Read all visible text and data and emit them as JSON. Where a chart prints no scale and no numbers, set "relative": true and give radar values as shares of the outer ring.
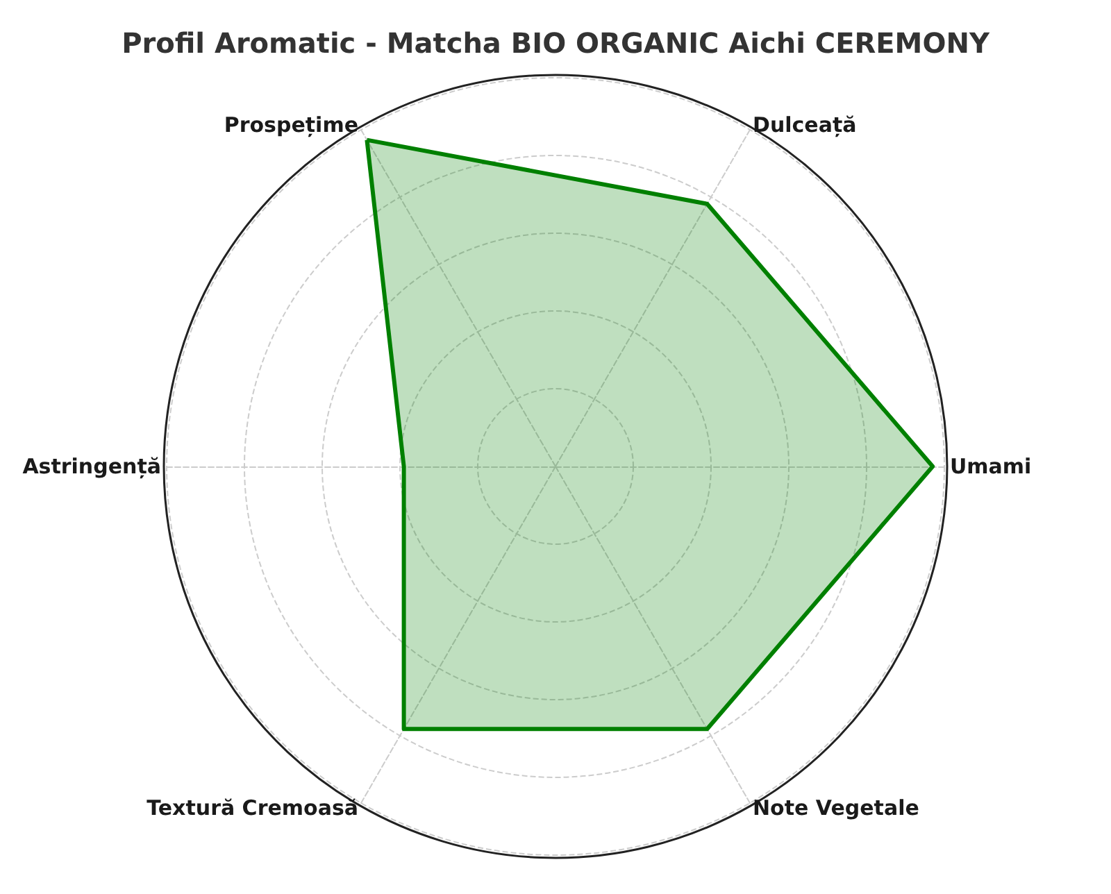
{
  "chart_data": {
    "type": "radar",
    "title": "Profil Aromatic - Matcha BIO ORGANIC Aichi CEREMONY",
    "categories": [
      "Dulceață",
      "Umami",
      "Note Vegetale",
      "Textură Cremoasă",
      "Astringență",
      "Prospețime"
    ],
    "relative": true,
    "grid": true,
    "marker": "none",
    "line_style": "solid",
    "series": [
      {
        "color": "#008000",
        "values": [
          0.78,
          0.97,
          0.78,
          0.78,
          0.39,
          0.97
        ]
      }
    ]
  }
}
